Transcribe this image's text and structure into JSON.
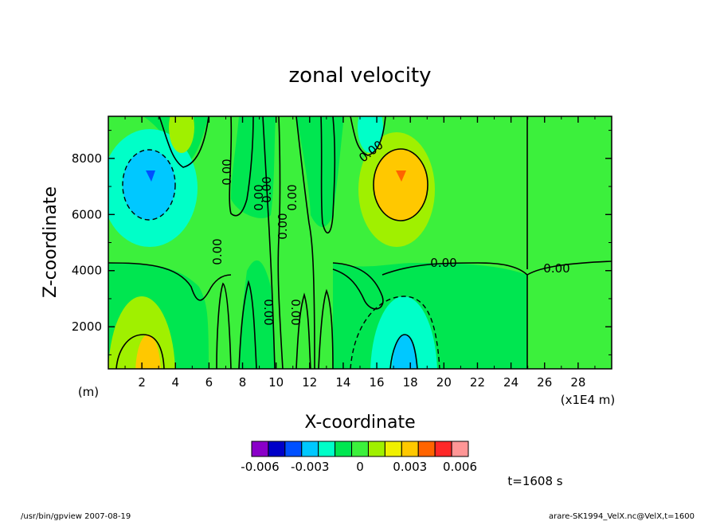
{
  "chart_data": {
    "type": "heatmap",
    "title": "zonal velocity",
    "xlabel": "X-coordinate",
    "ylabel": "Z-coordinate",
    "x_unit": "(x1E4 m)",
    "y_unit": "(m)",
    "xlim": [
      0,
      30
    ],
    "ylim": [
      500,
      9500
    ],
    "x_ticks": [
      "2",
      "4",
      "6",
      "8",
      "10",
      "12",
      "14",
      "16",
      "18",
      "20",
      "22",
      "24",
      "26",
      "28"
    ],
    "y_ticks": [
      "2000",
      "4000",
      "6000",
      "8000"
    ],
    "contour_labels": [
      "0.00",
      "0.00",
      "0.00",
      "0.00",
      "0.00",
      "0.00",
      "0.00",
      "0.00",
      "0.00",
      "0.00",
      "0.00"
    ],
    "colorbar": {
      "levels": [
        -0.006,
        -0.005,
        -0.004,
        -0.003,
        -0.002,
        -0.001,
        0,
        0.001,
        0.002,
        0.003,
        0.004,
        0.005,
        0.006
      ],
      "tick_labels": [
        "-0.006",
        "-0.003",
        "0",
        "0.003",
        "0.006"
      ],
      "colors": [
        "#8a00c8",
        "#0000c8",
        "#0050ff",
        "#00c8ff",
        "#00ffc8",
        "#00e650",
        "#3cf03c",
        "#a0f000",
        "#f0f000",
        "#ffc800",
        "#ff6400",
        "#ff2828",
        "#ff9696"
      ]
    },
    "features": [
      {
        "x": 2.5,
        "z": 7000,
        "sign": "negative",
        "peak": -0.004
      },
      {
        "x": 17.5,
        "z": 7000,
        "sign": "positive",
        "peak": 0.004
      },
      {
        "x": 2.5,
        "z": 1200,
        "sign": "positive",
        "peak": 0.003
      },
      {
        "x": 17.5,
        "z": 1200,
        "sign": "negative",
        "peak": -0.003
      }
    ],
    "grid": false
  },
  "annotation": {
    "time": "t=1608 s"
  },
  "footer": {
    "left": "/usr/bin/gpview   2007-08-19",
    "right": "arare-SK1994_VelX.nc@VelX,t=1600"
  }
}
